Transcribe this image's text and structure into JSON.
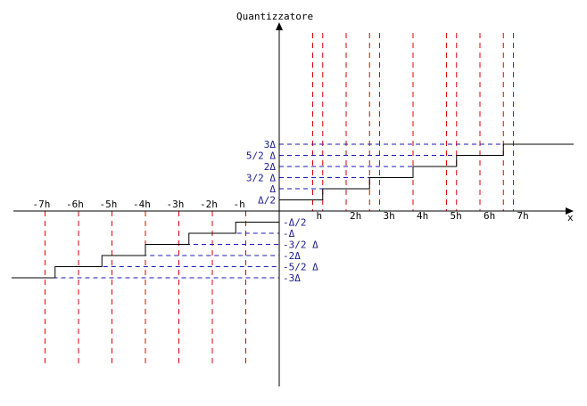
{
  "title": "Quantizzatore",
  "x_axis_label": "x",
  "x_ticks_positive": [
    "h",
    "2h",
    "3h",
    "4h",
    "5h",
    "6h",
    "7h"
  ],
  "x_ticks_negative": [
    "-h",
    "-2h",
    "-3h",
    "-4h",
    "-5h",
    "-6h",
    "-7h"
  ],
  "y_levels_positive": [
    "Δ/2",
    "Δ",
    "3/2 Δ",
    "2Δ",
    "5/2 Δ",
    "3Δ"
  ],
  "y_levels_negative": [
    "-Δ/2",
    "-Δ",
    "-3/2 Δ",
    "-2Δ",
    "-5/2 Δ",
    "-3Δ"
  ],
  "staircase": {
    "positive_steps": [
      {
        "from_h": 0,
        "to_h": 1.3,
        "level_delta": 0.5
      },
      {
        "from_h": 1.3,
        "to_h": 2.7,
        "level_delta": 1.0
      },
      {
        "from_h": 2.7,
        "to_h": 4.0,
        "level_delta": 1.5
      },
      {
        "from_h": 4.0,
        "to_h": 5.3,
        "level_delta": 2.0
      },
      {
        "from_h": 5.3,
        "to_h": 6.7,
        "level_delta": 2.5
      },
      {
        "from_h": 6.7,
        "to_h": 8.8,
        "level_delta": 3.0
      }
    ],
    "negative_steps": [
      {
        "from_h": 0,
        "to_h": -1.3,
        "level_delta": -0.5
      },
      {
        "from_h": -1.3,
        "to_h": -2.7,
        "level_delta": -1.0
      },
      {
        "from_h": -2.7,
        "to_h": -4.0,
        "level_delta": -1.5
      },
      {
        "from_h": -4.0,
        "to_h": -5.3,
        "level_delta": -2.0
      },
      {
        "from_h": -5.3,
        "to_h": -6.7,
        "level_delta": -2.5
      },
      {
        "from_h": -6.7,
        "to_h": -8.0,
        "level_delta": -3.0
      }
    ]
  },
  "colors": {
    "axis": "#000000",
    "step": "#000000",
    "grid_vertical": "#e00000",
    "grid_horizontal": "#1a1ab0",
    "label_dark": "#000000",
    "label_blue": "#1a1a8c"
  }
}
